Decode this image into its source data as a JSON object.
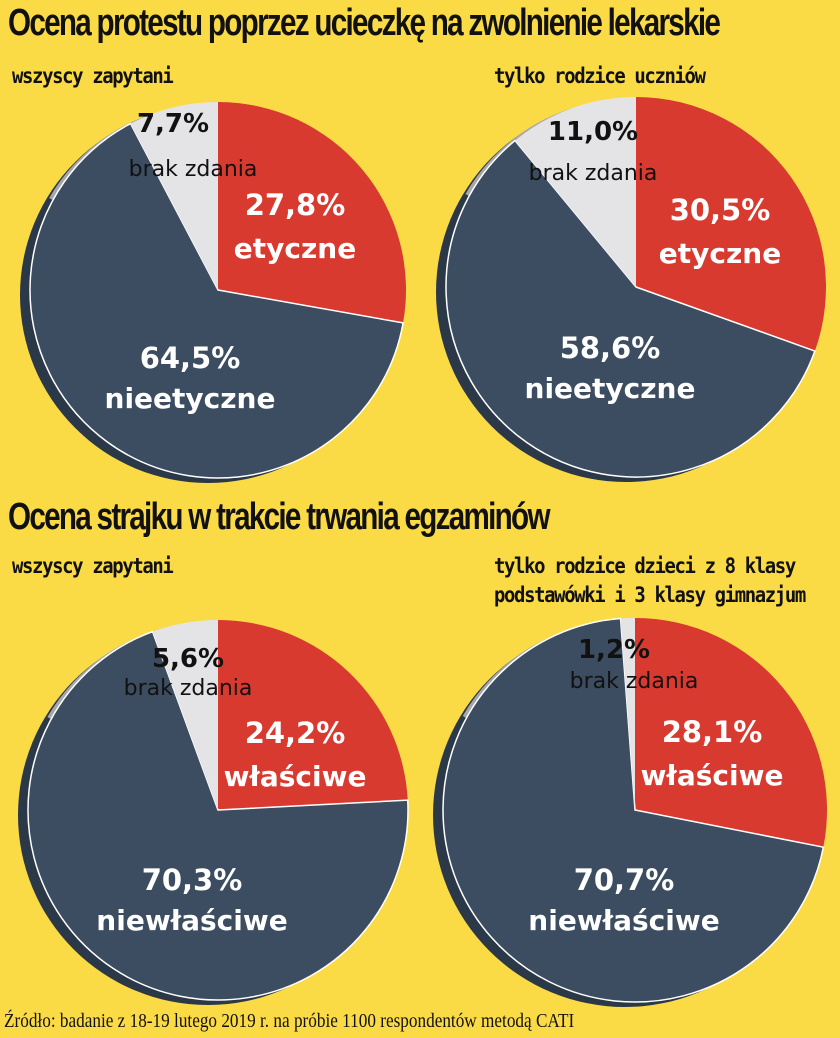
{
  "sections": [
    {
      "title": "Ocena protestu poprzez ucieczkę na zwolnienie lekarskie"
    },
    {
      "title": "Ocena strajku w trakcie trwania egzaminów"
    }
  ],
  "colors": {
    "red": "#D83A30",
    "navy": "#3D4D61",
    "light": "#E4E4E6",
    "grey": "#A7A7A9",
    "background": "#FBDB45"
  },
  "chart_data": [
    {
      "type": "pie",
      "section": 0,
      "subtitle_lines": [
        "wszyscy zapytani"
      ],
      "slices": [
        {
          "label": "etyczne",
          "value": 27.8,
          "display": "27,8%",
          "color": "#D83A30"
        },
        {
          "label": "nieetyczne",
          "value": 64.5,
          "display": "64,5%",
          "color": "#3D4D61"
        },
        {
          "label": "brak zdania",
          "value": 7.7,
          "display": "7,7%",
          "color": "#E4E4E6"
        }
      ]
    },
    {
      "type": "pie",
      "section": 0,
      "subtitle_lines": [
        "tylko rodzice uczniów"
      ],
      "slices": [
        {
          "label": "etyczne",
          "value": 30.5,
          "display": "30,5%",
          "color": "#D83A30"
        },
        {
          "label": "nieetyczne",
          "value": 58.6,
          "display": "58,6%",
          "color": "#3D4D61"
        },
        {
          "label": "brak zdania",
          "value": 11.0,
          "display": "11,0%",
          "color": "#E4E4E6"
        }
      ]
    },
    {
      "type": "pie",
      "section": 1,
      "subtitle_lines": [
        "wszyscy zapytani"
      ],
      "slices": [
        {
          "label": "właściwe",
          "value": 24.2,
          "display": "24,2%",
          "color": "#D83A30"
        },
        {
          "label": "niewłaściwe",
          "value": 70.3,
          "display": "70,3%",
          "color": "#3D4D61"
        },
        {
          "label": "brak zdania",
          "value": 5.6,
          "display": "5,6%",
          "color": "#E4E4E6"
        }
      ]
    },
    {
      "type": "pie",
      "section": 1,
      "subtitle_lines": [
        "tylko rodzice dzieci z 8 klasy",
        "podstawówki i 3 klasy gimnazjum"
      ],
      "slices": [
        {
          "label": "właściwe",
          "value": 28.1,
          "display": "28,1%",
          "color": "#D83A30"
        },
        {
          "label": "niewłaściwe",
          "value": 70.7,
          "display": "70,7%",
          "color": "#3D4D61"
        },
        {
          "label": "brak zdania",
          "value": 1.2,
          "display": "1,2%",
          "color": "#E4E4E6"
        }
      ]
    }
  ],
  "source": "Źródło: badanie z 18-19 lutego 2019 r. na próbie 1100 respondentów metodą CATI"
}
